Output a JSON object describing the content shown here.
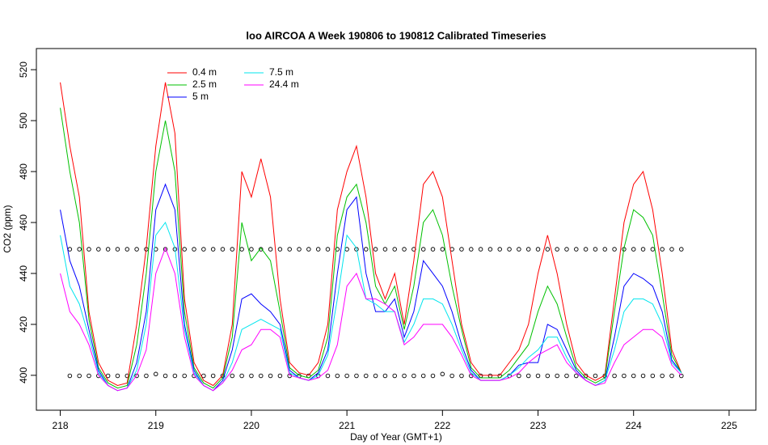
{
  "chart_data": {
    "type": "line",
    "title": "loo AIRCOA A  Week 190806 to 190812  Calibrated Timeseries",
    "xlabel": "Day of Year (GMT+1)",
    "ylabel": "CO2 (ppm)",
    "xlim": [
      217.75,
      225.28
    ],
    "ylim": [
      386.3,
      528.3
    ],
    "xticks": [
      218,
      219,
      220,
      221,
      222,
      223,
      224,
      225
    ],
    "yticks": [
      400,
      420,
      440,
      460,
      480,
      500,
      520
    ],
    "x": [
      218,
      218.1,
      218.2,
      218.3,
      218.4,
      218.5,
      218.6,
      218.7,
      218.8,
      218.9,
      219,
      219.1,
      219.2,
      219.3,
      219.4,
      219.5,
      219.6,
      219.7,
      219.8,
      219.9,
      220,
      220.1,
      220.2,
      220.3,
      220.4,
      220.5,
      220.6,
      220.7,
      220.8,
      220.9,
      221,
      221.1,
      221.2,
      221.3,
      221.4,
      221.5,
      221.6,
      221.7,
      221.8,
      221.9,
      222,
      222.1,
      222.2,
      222.3,
      222.4,
      222.5,
      222.6,
      222.7,
      222.8,
      222.9,
      223,
      223.1,
      223.2,
      223.3,
      223.4,
      223.5,
      223.6,
      223.7,
      223.8,
      223.9,
      224,
      224.1,
      224.2,
      224.3,
      224.4,
      224.5
    ],
    "series": [
      {
        "name": "0.4 m",
        "color": "#ff0000",
        "values": [
          515,
          490,
          470,
          425,
          405,
          398,
          396,
          397,
          420,
          450,
          490,
          515,
          495,
          430,
          405,
          398,
          396,
          400,
          420,
          480,
          470,
          485,
          470,
          430,
          405,
          401,
          400,
          405,
          420,
          465,
          480,
          490,
          470,
          440,
          430,
          440,
          420,
          445,
          475,
          480,
          470,
          445,
          420,
          405,
          400,
          400,
          400,
          405,
          410,
          420,
          440,
          455,
          440,
          420,
          405,
          400,
          398,
          400,
          430,
          460,
          475,
          480,
          465,
          440,
          410,
          401
        ]
      },
      {
        "name": "2.5 m",
        "color": "#00c000",
        "values": [
          505,
          480,
          460,
          422,
          403,
          397,
          395,
          396,
          412,
          440,
          480,
          500,
          480,
          425,
          403,
          397,
          395,
          399,
          415,
          460,
          445,
          450,
          445,
          425,
          403,
          400,
          399,
          402,
          415,
          455,
          470,
          475,
          460,
          435,
          428,
          435,
          418,
          435,
          460,
          465,
          455,
          435,
          418,
          403,
          399,
          399,
          399,
          402,
          407,
          412,
          425,
          435,
          428,
          415,
          403,
          399,
          397,
          399,
          425,
          450,
          465,
          462,
          455,
          432,
          408,
          401
        ]
      },
      {
        "name": "5 m",
        "color": "#0000ff",
        "values": [
          465,
          445,
          435,
          418,
          402,
          396,
          394,
          395,
          405,
          425,
          465,
          475,
          465,
          420,
          402,
          396,
          394,
          398,
          410,
          430,
          432,
          428,
          425,
          420,
          402,
          399,
          398,
          401,
          410,
          440,
          465,
          470,
          440,
          425,
          425,
          430,
          415,
          425,
          445,
          440,
          435,
          425,
          412,
          402,
          398,
          398,
          398,
          400,
          404,
          405,
          405,
          420,
          418,
          410,
          402,
          398,
          396,
          398,
          415,
          435,
          440,
          438,
          435,
          425,
          406,
          401
        ]
      },
      {
        "name": "7.5 m",
        "color": "#00e5ee",
        "values": [
          455,
          435,
          428,
          415,
          401,
          396,
          394,
          395,
          402,
          420,
          455,
          460,
          450,
          418,
          401,
          396,
          394,
          397,
          405,
          418,
          420,
          422,
          420,
          418,
          401,
          399,
          398,
          400,
          408,
          430,
          455,
          450,
          430,
          428,
          425,
          425,
          413,
          420,
          430,
          430,
          428,
          420,
          410,
          401,
          398,
          398,
          398,
          400,
          403,
          407,
          410,
          415,
          415,
          407,
          401,
          398,
          396,
          398,
          410,
          425,
          430,
          430,
          428,
          420,
          405,
          401
        ]
      },
      {
        "name": "24.4 m",
        "color": "#ff00ff",
        "values": [
          440,
          425,
          420,
          412,
          400,
          396,
          394,
          395,
          400,
          410,
          440,
          450,
          440,
          415,
          400,
          396,
          394,
          397,
          402,
          410,
          412,
          418,
          418,
          415,
          400,
          399,
          398,
          399,
          402,
          412,
          435,
          440,
          430,
          430,
          428,
          425,
          412,
          415,
          420,
          420,
          420,
          415,
          408,
          400,
          398,
          398,
          398,
          399,
          401,
          405,
          408,
          410,
          412,
          405,
          401,
          398,
          396,
          397,
          405,
          412,
          415,
          418,
          418,
          415,
          404,
          400
        ]
      }
    ],
    "points": [
      {
        "x": [
          218.1,
          218.2,
          218.3,
          218.4,
          218.5,
          218.6,
          218.7,
          218.8,
          218.9,
          219,
          219.1,
          219.2,
          219.3,
          219.4,
          219.5,
          219.6,
          219.7,
          219.8,
          219.9,
          220,
          220.1,
          220.2,
          220.3,
          220.4,
          220.5,
          220.6,
          220.7,
          220.8,
          220.9,
          221,
          221.1,
          221.2,
          221.3,
          221.4,
          221.5,
          221.6,
          221.7,
          221.8,
          221.9,
          222,
          222.1,
          222.2,
          222.3,
          222.4,
          222.5,
          222.6,
          222.7,
          222.8,
          222.9,
          223,
          223.1,
          223.2,
          223.3,
          223.4,
          223.5,
          223.6,
          223.7,
          223.8,
          223.9,
          224,
          224.1,
          224.2,
          224.3,
          224.4,
          224.5
        ],
        "values": [
          449.5,
          449.5,
          449.5,
          449.5,
          449.5,
          449.5,
          449.5,
          449.5,
          449.5,
          449.5,
          449.5,
          449.5,
          449.5,
          449.5,
          449.5,
          449.5,
          449.5,
          449.5,
          449.5,
          449.5,
          449.5,
          449.5,
          449.5,
          449.5,
          449.5,
          449.5,
          449.5,
          449.5,
          449.5,
          449.5,
          449.5,
          449.5,
          449.5,
          449.5,
          449.5,
          449.5,
          449.5,
          449.5,
          449.5,
          449.5,
          449.5,
          449.5,
          449.5,
          449.5,
          449.5,
          449.5,
          449.5,
          449.5,
          449.5,
          449.5,
          449.5,
          449.5,
          449.5,
          449.5,
          449.5,
          449.5,
          449.5,
          449.5,
          449.5,
          449.5,
          449.5,
          449.5,
          449.5,
          449.5,
          449.5
        ]
      },
      {
        "x": [
          218.1,
          218.2,
          218.3,
          218.4,
          218.5,
          218.6,
          218.7,
          218.8,
          218.9,
          219,
          219.1,
          219.2,
          219.3,
          219.4,
          219.5,
          219.6,
          219.7,
          219.8,
          219.9,
          220,
          220.1,
          220.2,
          220.3,
          220.4,
          220.5,
          220.6,
          220.7,
          220.8,
          220.9,
          221,
          221.1,
          221.2,
          221.3,
          221.4,
          221.5,
          221.6,
          221.7,
          221.8,
          221.9,
          222,
          222.1,
          222.2,
          222.3,
          222.4,
          222.5,
          222.6,
          222.7,
          222.8,
          222.9,
          223,
          223.1,
          223.2,
          223.3,
          223.4,
          223.5,
          223.6,
          223.7,
          223.8,
          223.9,
          224,
          224.1,
          224.2,
          224.3,
          224.4,
          224.5
        ],
        "values": [
          399.8,
          399.8,
          399.8,
          399.8,
          399.8,
          399.8,
          399.8,
          399.8,
          399.8,
          400.5,
          399.8,
          399.8,
          399.8,
          399.8,
          399.8,
          399.8,
          399.8,
          399.8,
          399.8,
          399.8,
          399.8,
          399.8,
          399.8,
          399.8,
          399.8,
          399.8,
          399.8,
          399.8,
          399.8,
          399.8,
          399.8,
          399.8,
          399.8,
          399.8,
          399.8,
          399.8,
          399.8,
          399.8,
          399.8,
          400.5,
          399.8,
          399.8,
          399.8,
          399.8,
          399.8,
          399.8,
          399.8,
          399.8,
          399.8,
          399.8,
          399.8,
          399.8,
          399.8,
          399.8,
          399.8,
          399.8,
          399.8,
          399.8,
          399.8,
          399.8,
          399.8,
          399.8,
          399.8,
          399.8,
          399.8
        ]
      }
    ]
  }
}
